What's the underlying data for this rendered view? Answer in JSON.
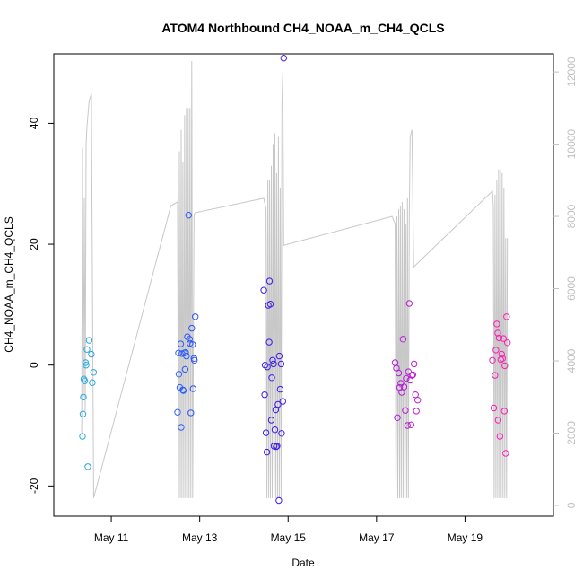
{
  "chart_data": {
    "type": "scatter",
    "title": "ATOM4 Northbound CH4_NOAA_m_CH4_QCLS",
    "xlabel": "Date",
    "ylabel": "CH4_NOAA_m_CH4_QCLS",
    "grid": false,
    "legend": "none",
    "x_ticks": [
      "May 11",
      "May 13",
      "May 15",
      "May 17",
      "May 19"
    ],
    "x_tick_values": [
      11,
      13,
      15,
      17,
      19
    ],
    "xlim": [
      9.7,
      21.0
    ],
    "y_ticks": [
      -20,
      0,
      20,
      40
    ],
    "ylim": [
      -25,
      51.5
    ],
    "y2_ticks": [
      0,
      2000,
      4000,
      6000,
      8000,
      10000,
      12000
    ],
    "y2lim": [
      -300,
      12500
    ],
    "colors": {
      "line": "#c8c8c8",
      "axis": "#000000",
      "right_axis": "#c0c0c0",
      "gradient": [
        "#29abe2",
        "#2d6bff",
        "#2a1ee8",
        "#7b1ad9",
        "#c51fd0",
        "#ff1fb4"
      ]
    },
    "series": [
      {
        "type": "points",
        "points": [
          [
            10.35,
            -11.8
          ],
          [
            10.36,
            -8.1
          ],
          [
            10.37,
            -5.3
          ],
          [
            10.38,
            -2.3
          ],
          [
            10.4,
            -2.6
          ],
          [
            10.42,
            0.4
          ],
          [
            10.43,
            0.0
          ],
          [
            10.45,
            2.6
          ],
          [
            10.47,
            -16.8
          ],
          [
            10.5,
            4.1
          ],
          [
            10.55,
            1.8
          ],
          [
            10.57,
            -2.9
          ],
          [
            10.6,
            -1.2
          ],
          [
            12.5,
            -7.8
          ],
          [
            12.52,
            2.0
          ],
          [
            12.53,
            -1.5
          ],
          [
            12.55,
            -3.7
          ],
          [
            12.57,
            3.5
          ],
          [
            12.58,
            -10.3
          ],
          [
            12.6,
            1.9
          ],
          [
            12.62,
            -4.1
          ],
          [
            12.63,
            -4.2
          ],
          [
            12.65,
            2.0
          ],
          [
            12.67,
            -0.7
          ],
          [
            12.68,
            2.1
          ],
          [
            12.7,
            1.5
          ],
          [
            12.72,
            4.7
          ],
          [
            12.75,
            24.8
          ],
          [
            12.77,
            4.3
          ],
          [
            12.78,
            3.6
          ],
          [
            12.8,
            -7.9
          ],
          [
            12.82,
            6.1
          ],
          [
            12.84,
            3.4
          ],
          [
            12.85,
            -3.9
          ],
          [
            12.87,
            1.1
          ],
          [
            12.88,
            0.8
          ],
          [
            12.9,
            8.0
          ],
          [
            14.45,
            12.4
          ],
          [
            14.47,
            -4.9
          ],
          [
            14.48,
            0.0
          ],
          [
            14.5,
            -11.2
          ],
          [
            14.52,
            -14.4
          ],
          [
            14.53,
            -0.3
          ],
          [
            14.55,
            9.9
          ],
          [
            14.57,
            3.8
          ],
          [
            14.58,
            13.9
          ],
          [
            14.6,
            10.1
          ],
          [
            14.62,
            -9.1
          ],
          [
            14.63,
            -2.1
          ],
          [
            14.65,
            0.8
          ],
          [
            14.67,
            0.2
          ],
          [
            14.68,
            -13.4
          ],
          [
            14.7,
            -10.7
          ],
          [
            14.72,
            -7.4
          ],
          [
            14.73,
            -13.5
          ],
          [
            14.75,
            -13.4
          ],
          [
            14.77,
            -6.5
          ],
          [
            14.79,
            -22.4
          ],
          [
            14.8,
            1.5
          ],
          [
            14.82,
            -4.0
          ],
          [
            14.84,
            0.2
          ],
          [
            14.85,
            -11.3
          ],
          [
            14.88,
            -6.0
          ],
          [
            14.9,
            50.8
          ],
          [
            17.42,
            0.4
          ],
          [
            17.45,
            -0.5
          ],
          [
            17.47,
            -8.7
          ],
          [
            17.5,
            -1.3
          ],
          [
            17.52,
            -3.7
          ],
          [
            17.55,
            -3.0
          ],
          [
            17.57,
            -4.5
          ],
          [
            17.6,
            4.3
          ],
          [
            17.62,
            -3.6
          ],
          [
            17.65,
            -7.5
          ],
          [
            17.67,
            -2.2
          ],
          [
            17.7,
            -10.0
          ],
          [
            17.72,
            -1.1
          ],
          [
            17.74,
            10.2
          ],
          [
            17.76,
            -2.5
          ],
          [
            17.78,
            -9.9
          ],
          [
            17.8,
            -1.7
          ],
          [
            17.82,
            -1.6
          ],
          [
            17.85,
            0.2
          ],
          [
            17.88,
            -4.9
          ],
          [
            17.9,
            -7.6
          ],
          [
            17.93,
            -5.8
          ],
          [
            19.62,
            0.8
          ],
          [
            19.65,
            -7.1
          ],
          [
            19.68,
            -1.7
          ],
          [
            19.7,
            2.5
          ],
          [
            19.72,
            6.8
          ],
          [
            19.74,
            5.3
          ],
          [
            19.75,
            -9.1
          ],
          [
            19.77,
            4.5
          ],
          [
            19.79,
            -11.8
          ],
          [
            19.81,
            0.9
          ],
          [
            19.83,
            1.8
          ],
          [
            19.85,
            1.1
          ],
          [
            19.87,
            4.4
          ],
          [
            19.89,
            -7.6
          ],
          [
            19.9,
            -0.1
          ],
          [
            19.92,
            -14.6
          ],
          [
            19.94,
            8.0
          ],
          [
            19.96,
            3.7
          ]
        ]
      },
      {
        "type": "line",
        "axis": "right",
        "points": [
          [
            10.33,
            2000
          ],
          [
            10.35,
            9900
          ],
          [
            10.37,
            3000
          ],
          [
            10.39,
            8500
          ],
          [
            10.41,
            2600
          ],
          [
            10.43,
            10000
          ],
          [
            10.45,
            10500
          ],
          [
            10.5,
            11200
          ],
          [
            10.55,
            11400
          ],
          [
            10.6,
            200
          ],
          [
            12.35,
            8300
          ],
          [
            12.5,
            8400
          ],
          [
            12.52,
            200
          ],
          [
            12.54,
            9800
          ],
          [
            12.56,
            200
          ],
          [
            12.58,
            10400
          ],
          [
            12.6,
            200
          ],
          [
            12.62,
            9500
          ],
          [
            12.64,
            200
          ],
          [
            12.66,
            10800
          ],
          [
            12.68,
            200
          ],
          [
            12.7,
            11000
          ],
          [
            12.72,
            200
          ],
          [
            12.74,
            11000
          ],
          [
            12.76,
            200
          ],
          [
            12.78,
            11000
          ],
          [
            12.8,
            200
          ],
          [
            12.82,
            12300
          ],
          [
            12.84,
            200
          ],
          [
            12.87,
            8000
          ],
          [
            12.89,
            8100
          ],
          [
            14.45,
            8500
          ],
          [
            14.5,
            8200
          ],
          [
            14.52,
            200
          ],
          [
            14.54,
            9000
          ],
          [
            14.56,
            200
          ],
          [
            14.58,
            9000
          ],
          [
            14.6,
            200
          ],
          [
            14.62,
            9400
          ],
          [
            14.64,
            200
          ],
          [
            14.66,
            10000
          ],
          [
            14.68,
            200
          ],
          [
            14.7,
            10300
          ],
          [
            14.72,
            200
          ],
          [
            14.74,
            9200
          ],
          [
            14.76,
            200
          ],
          [
            14.78,
            10200
          ],
          [
            14.8,
            200
          ],
          [
            14.82,
            8800
          ],
          [
            14.84,
            200
          ],
          [
            14.86,
            11000
          ],
          [
            14.88,
            12000
          ],
          [
            14.9,
            7200
          ],
          [
            17.35,
            8000
          ],
          [
            17.42,
            7800
          ],
          [
            17.44,
            200
          ],
          [
            17.46,
            8000
          ],
          [
            17.48,
            200
          ],
          [
            17.5,
            8200
          ],
          [
            17.52,
            200
          ],
          [
            17.54,
            8300
          ],
          [
            17.56,
            200
          ],
          [
            17.58,
            8400
          ],
          [
            17.6,
            200
          ],
          [
            17.62,
            8200
          ],
          [
            17.64,
            200
          ],
          [
            17.66,
            7800
          ],
          [
            17.68,
            200
          ],
          [
            17.7,
            8500
          ],
          [
            17.72,
            200
          ],
          [
            17.74,
            8000
          ],
          [
            17.76,
            10200
          ],
          [
            17.8,
            10400
          ],
          [
            17.84,
            6600
          ],
          [
            19.62,
            8700
          ],
          [
            19.64,
            8300
          ],
          [
            19.66,
            200
          ],
          [
            19.68,
            8600
          ],
          [
            19.7,
            200
          ],
          [
            19.72,
            9000
          ],
          [
            19.74,
            200
          ],
          [
            19.76,
            9300
          ],
          [
            19.78,
            200
          ],
          [
            19.8,
            9300
          ],
          [
            19.82,
            200
          ],
          [
            19.84,
            9200
          ],
          [
            19.86,
            200
          ],
          [
            19.88,
            8800
          ],
          [
            19.9,
            200
          ],
          [
            19.92,
            7400
          ],
          [
            19.94,
            200
          ],
          [
            19.96,
            7400
          ]
        ]
      }
    ]
  }
}
